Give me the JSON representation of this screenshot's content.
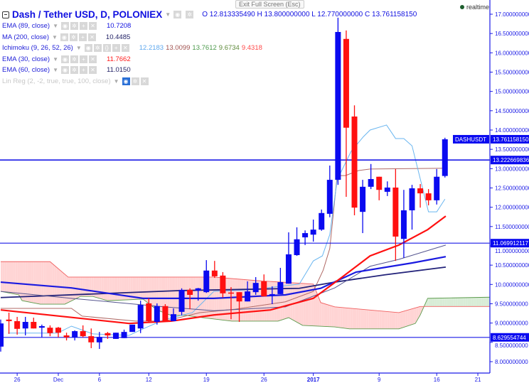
{
  "header": {
    "symbol_title": "Dash / Tether USD, D, POLONIEX",
    "ohlc": {
      "o_label": "O",
      "o": "12.813335490",
      "h_label": "H",
      "h": "13.800000000",
      "l_label": "L",
      "l": "12.770000000",
      "c_label": "C",
      "c": "13.761158150"
    },
    "tooltip": "Exit Full Screen (Esc)",
    "realtime_label": "realtime"
  },
  "indicators": [
    {
      "name": "EMA (89, close)",
      "values": [
        "10.7208"
      ],
      "color": "#1010e0"
    },
    {
      "name": "MA (200, close)",
      "values": [
        "10.4485"
      ],
      "color": "#222266"
    },
    {
      "name": "Ichimoku (9, 26, 52, 26)",
      "values": [
        "12.2183",
        "13.0099",
        "13.7612",
        "9.6734",
        "9.4318"
      ],
      "colors": [
        "#5fa8ee",
        "#a0524f",
        "#4c9a4c",
        "#5e8a3a",
        "#ff4a4a"
      ]
    },
    {
      "name": "EMA (30, close)",
      "values": [
        "11.7662"
      ],
      "color": "#ff1a1a"
    },
    {
      "name": "EMA (60, close)",
      "values": [
        "11.0150"
      ],
      "color": "#222266"
    },
    {
      "name": "Lin Reg (2, -2, true, true, 100, close)",
      "values": [],
      "disabled": true
    }
  ],
  "colors": {
    "up": "#0a0af0",
    "down": "#ff1010",
    "axis": "#1a1ae6",
    "ema89": "#1a1ae0",
    "ma200": "#23237a",
    "ema60": "#55558f",
    "ema30": "#ff1010",
    "conversion": "#6ab6f0",
    "base": "#b06a66",
    "spanA": "#5a9a4a",
    "spanB": "#f06060",
    "cloud_bear": "#ffd4d4",
    "cloud_bull": "#d8ecd6"
  },
  "chart_data": {
    "type": "candlestick",
    "ylim": [
      7.8,
      17.1
    ],
    "y_ticks": [
      "17.000000000",
      "16.500000000",
      "16.000000000",
      "15.500000000",
      "15.000000000",
      "14.500000000",
      "14.000000000",
      "13.500000000",
      "13.000000000",
      "12.500000000",
      "12.000000000",
      "11.500000000",
      "11.000000000",
      "10.500000000",
      "10.000000000",
      "9.500000000",
      "9.000000000",
      "8.500000000",
      "8.000000000"
    ],
    "x_ticks": [
      {
        "day": 2,
        "label": "26"
      },
      {
        "day": 7,
        "label": "Dec"
      },
      {
        "day": 12,
        "label": "6"
      },
      {
        "day": 18,
        "label": "12"
      },
      {
        "day": 25,
        "label": "19"
      },
      {
        "day": 32,
        "label": "26"
      },
      {
        "day": 38,
        "label": "2017"
      },
      {
        "day": 46,
        "label": "9"
      },
      {
        "day": 53,
        "label": "16"
      },
      {
        "day": 58,
        "label": "21"
      }
    ],
    "price_labels": [
      {
        "name": "DASHUSDT",
        "value": 13.76115815,
        "text": "13.761158150"
      },
      {
        "value": 13.222669836,
        "text": "13.222669836"
      },
      {
        "value": 11.069912117,
        "text": "11.069912117"
      },
      {
        "value": 8.629554744,
        "text": "8.629554744"
      }
    ],
    "horizontal_lines": [
      13.222669836,
      11.069912117,
      8.629554744
    ],
    "candles": [
      [
        8.39,
        9.09,
        8.26,
        8.99
      ],
      [
        9.09,
        9.27,
        8.72,
        9.05
      ],
      [
        9.05,
        9.16,
        8.7,
        8.85
      ],
      [
        8.86,
        9.16,
        8.68,
        9.03
      ],
      [
        9.03,
        9.14,
        8.86,
        8.86
      ],
      [
        8.88,
        8.96,
        8.63,
        8.92
      ],
      [
        8.88,
        8.94,
        8.66,
        8.74
      ],
      [
        8.88,
        8.9,
        8.63,
        8.75
      ],
      [
        8.68,
        8.75,
        8.55,
        8.63
      ],
      [
        8.63,
        8.81,
        8.55,
        8.79
      ],
      [
        8.79,
        8.94,
        8.63,
        8.66
      ],
      [
        8.66,
        8.86,
        8.35,
        8.5
      ],
      [
        8.5,
        8.77,
        8.33,
        8.64
      ],
      [
        8.74,
        8.77,
        8.59,
        8.68
      ],
      [
        8.59,
        8.75,
        8.59,
        8.75
      ],
      [
        8.61,
        8.83,
        8.61,
        8.77
      ],
      [
        8.77,
        8.96,
        8.77,
        8.96
      ],
      [
        8.86,
        9.58,
        8.74,
        9.47
      ],
      [
        9.51,
        9.64,
        9.03,
        9.05
      ],
      [
        9.03,
        9.51,
        8.96,
        9.44
      ],
      [
        9.44,
        9.49,
        9.03,
        9.05
      ],
      [
        9.05,
        9.38,
        9.05,
        9.23
      ],
      [
        9.29,
        9.9,
        9.2,
        9.86
      ],
      [
        9.86,
        9.9,
        9.36,
        9.73
      ],
      [
        9.84,
        9.91,
        9.58,
        9.9
      ],
      [
        9.8,
        10.63,
        9.78,
        10.36
      ],
      [
        10.36,
        10.61,
        10.17,
        10.21
      ],
      [
        10.23,
        10.32,
        9.66,
        9.77
      ],
      [
        9.79,
        9.93,
        9.1,
        9.77
      ],
      [
        9.8,
        9.8,
        9.03,
        9.56
      ],
      [
        9.56,
        10.08,
        9.56,
        9.82
      ],
      [
        9.8,
        10.19,
        9.73,
        10.04
      ],
      [
        10.08,
        10.26,
        9.69,
        9.69
      ],
      [
        9.73,
        9.95,
        9.49,
        9.75
      ],
      [
        9.75,
        10.43,
        9.75,
        10.06
      ],
      [
        10.02,
        11.35,
        10.02,
        10.78
      ],
      [
        10.76,
        11.48,
        10.74,
        11.17
      ],
      [
        11.22,
        11.4,
        11.02,
        11.33
      ],
      [
        11.29,
        11.68,
        11.11,
        11.42
      ],
      [
        11.42,
        11.94,
        11.39,
        11.85
      ],
      [
        11.83,
        13.08,
        11.74,
        12.71
      ],
      [
        12.71,
        16.91,
        12.58,
        16.54
      ],
      [
        16.36,
        16.58,
        12.27,
        14.06
      ],
      [
        14.35,
        14.64,
        11.79,
        11.99
      ],
      [
        11.88,
        12.71,
        11.33,
        12.53
      ],
      [
        12.53,
        13.12,
        12.47,
        12.73
      ],
      [
        12.79,
        12.79,
        12.18,
        12.45
      ],
      [
        12.4,
        12.67,
        12.29,
        12.51
      ],
      [
        12.51,
        12.99,
        10.61,
        11.24
      ],
      [
        11.18,
        12.45,
        10.69,
        11.92
      ],
      [
        11.92,
        12.58,
        11.42,
        12.49
      ],
      [
        12.49,
        12.6,
        11.99,
        12.36
      ],
      [
        12.36,
        12.47,
        12.05,
        12.18
      ],
      [
        12.18,
        12.99,
        12.07,
        12.79
      ],
      [
        12.81,
        13.8,
        12.77,
        13.76
      ]
    ],
    "candle_fields": [
      "open",
      "high",
      "low",
      "close"
    ],
    "series": {
      "ema89": [
        [
          0,
          10.06
        ],
        [
          8.6,
          9.91
        ],
        [
          17.3,
          9.64
        ],
        [
          25.9,
          9.64
        ],
        [
          34.6,
          9.73
        ],
        [
          38.9,
          9.9
        ],
        [
          43.2,
          10.32
        ],
        [
          50.1,
          10.56
        ],
        [
          54.1,
          10.72
        ]
      ],
      "ma200": [
        [
          0,
          9.66
        ],
        [
          21.6,
          9.84
        ],
        [
          36.3,
          9.9
        ],
        [
          40.6,
          10.06
        ],
        [
          46.7,
          10.25
        ],
        [
          54.1,
          10.45
        ]
      ],
      "ema60": [
        [
          0,
          9.82
        ],
        [
          8.6,
          9.64
        ],
        [
          19.9,
          9.42
        ],
        [
          25.9,
          9.32
        ],
        [
          34.6,
          9.42
        ],
        [
          40.6,
          9.91
        ],
        [
          44.9,
          10.47
        ],
        [
          48.4,
          10.65
        ],
        [
          54.1,
          11.02
        ]
      ],
      "ema30": [
        [
          0,
          9.34
        ],
        [
          15.6,
          8.99
        ],
        [
          20.7,
          9.05
        ],
        [
          25.9,
          9.21
        ],
        [
          32.8,
          9.34
        ],
        [
          38,
          9.64
        ],
        [
          41.5,
          10.19
        ],
        [
          44.9,
          10.74
        ],
        [
          48.4,
          11.02
        ],
        [
          51.9,
          11.42
        ],
        [
          54.1,
          11.77
        ]
      ],
      "conversion": [
        [
          0.9,
          8.74
        ],
        [
          6.9,
          8.74
        ],
        [
          8.6,
          8.92
        ],
        [
          11.2,
          8.72
        ],
        [
          15.6,
          8.68
        ],
        [
          17.3,
          8.85
        ],
        [
          19.9,
          9.09
        ],
        [
          23.3,
          9.27
        ],
        [
          25.9,
          9.82
        ],
        [
          30.3,
          9.86
        ],
        [
          36.3,
          10.01
        ],
        [
          38,
          10.61
        ],
        [
          39.1,
          10.74
        ],
        [
          40,
          11.29
        ],
        [
          40.9,
          12.71
        ],
        [
          42.6,
          13.45
        ],
        [
          44.1,
          13.83
        ],
        [
          44.9,
          14.0
        ],
        [
          46.9,
          14.13
        ],
        [
          48,
          13.78
        ],
        [
          49,
          13.78
        ],
        [
          50,
          13.59
        ],
        [
          52,
          11.88
        ],
        [
          53,
          11.88
        ],
        [
          54,
          12.21
        ]
      ],
      "base": [
        [
          0,
          9.38
        ],
        [
          8.6,
          9.38
        ],
        [
          9.9,
          9.18
        ],
        [
          16.4,
          9.05
        ],
        [
          19.9,
          9.05
        ],
        [
          24.2,
          9.27
        ],
        [
          28.5,
          9.36
        ],
        [
          34.6,
          9.55
        ],
        [
          38,
          9.82
        ],
        [
          39.2,
          10.37
        ],
        [
          40,
          10.93
        ],
        [
          40.9,
          12.82
        ],
        [
          41.9,
          12.82
        ],
        [
          43.5,
          12.95
        ],
        [
          44.9,
          12.99
        ],
        [
          54.1,
          13.01
        ]
      ],
      "spanB": [
        [
          0,
          10.59
        ],
        [
          6,
          10.59
        ],
        [
          8.2,
          10.19
        ],
        [
          25.9,
          10.19
        ],
        [
          31.1,
          10.1
        ],
        [
          38,
          10.01
        ],
        [
          38.9,
          9.53
        ],
        [
          40.6,
          9.42
        ],
        [
          48.4,
          9.27
        ],
        [
          51,
          9.43
        ],
        [
          59.5,
          9.43
        ]
      ],
      "spanA": [
        [
          0,
          9.82
        ],
        [
          2.2,
          9.73
        ],
        [
          2.6,
          9.58
        ],
        [
          4.8,
          9.49
        ],
        [
          7.8,
          9.49
        ],
        [
          9.7,
          9.69
        ],
        [
          11.2,
          9.69
        ],
        [
          13,
          9.58
        ],
        [
          17.3,
          9.62
        ],
        [
          19,
          9.34
        ],
        [
          20.7,
          9.2
        ],
        [
          22.5,
          9.2
        ],
        [
          24.6,
          9.14
        ],
        [
          28.1,
          9.05
        ],
        [
          33.7,
          9.05
        ],
        [
          35,
          9.14
        ],
        [
          36.7,
          8.94
        ],
        [
          40.6,
          8.9
        ],
        [
          42.4,
          8.85
        ],
        [
          48.4,
          8.85
        ],
        [
          50.4,
          8.99
        ],
        [
          51,
          9.21
        ],
        [
          51.9,
          9.64
        ],
        [
          59.5,
          9.67
        ]
      ]
    }
  }
}
